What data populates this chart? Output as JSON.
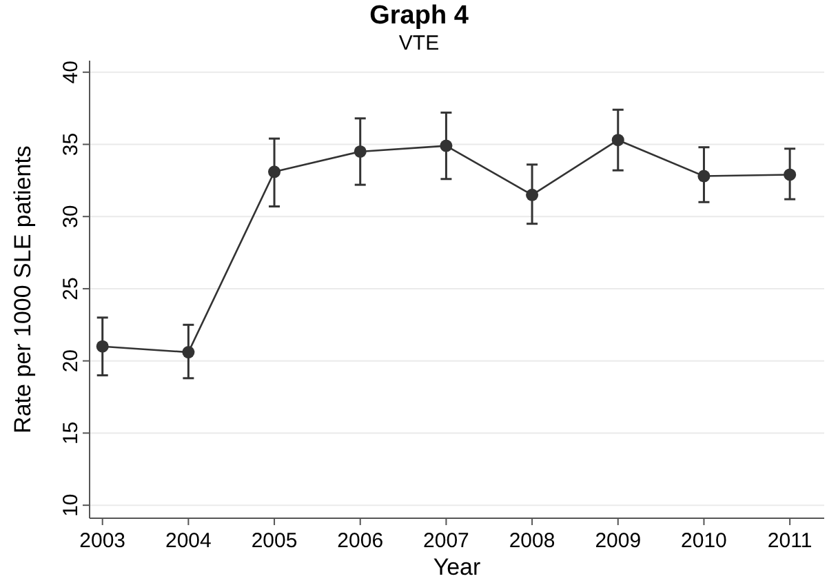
{
  "chart_data": {
    "type": "line",
    "title": "Graph 4",
    "subtitle": "VTE",
    "xlabel": "Year",
    "ylabel": "Rate per 1000 SLE patients",
    "x": [
      2003,
      2004,
      2005,
      2006,
      2007,
      2008,
      2009,
      2010,
      2011
    ],
    "series": [
      {
        "color": "#333333",
        "values": [
          21.0,
          20.6,
          33.1,
          34.5,
          34.9,
          31.5,
          35.3,
          32.8,
          32.9
        ],
        "errors": [
          [
            19.0,
            23.0
          ],
          [
            18.8,
            22.5
          ],
          [
            30.7,
            35.4
          ],
          [
            32.2,
            36.8
          ],
          [
            32.6,
            37.2
          ],
          [
            29.5,
            33.6
          ],
          [
            33.2,
            37.4
          ],
          [
            31.0,
            34.8
          ],
          [
            31.2,
            34.7
          ]
        ]
      }
    ],
    "xlim": [
      2002.85,
      2011.4
    ],
    "xticks": [
      2003,
      2004,
      2005,
      2006,
      2007,
      2008,
      2009,
      2010,
      2011
    ],
    "ylim": [
      9.1,
      40.8
    ],
    "yticks": [
      10,
      15,
      20,
      25,
      30,
      35,
      40
    ],
    "grid": "y",
    "marker": "circle",
    "line_style": "solid"
  }
}
